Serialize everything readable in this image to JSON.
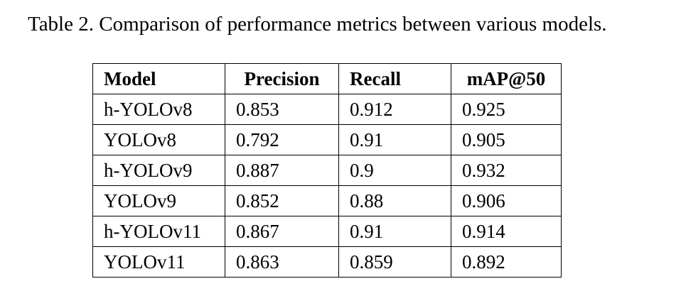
{
  "caption": "Table 2.  Comparison of performance metrics between various models.",
  "table": {
    "headers": [
      "Model",
      "Precision",
      "Recall",
      "mAP@50"
    ],
    "rows": [
      [
        "h-YOLOv8",
        "0.853",
        "0.912",
        "0.925"
      ],
      [
        "YOLOv8",
        "0.792",
        "0.91",
        "0.905"
      ],
      [
        "h-YOLOv9",
        "0.887",
        "0.9",
        "0.932"
      ],
      [
        "YOLOv9",
        "0.852",
        "0.88",
        "0.906"
      ],
      [
        "h-YOLOv11",
        "0.867",
        "0.91",
        "0.914"
      ],
      [
        "YOLOv11",
        "0.863",
        "0.859",
        "0.892"
      ]
    ]
  }
}
